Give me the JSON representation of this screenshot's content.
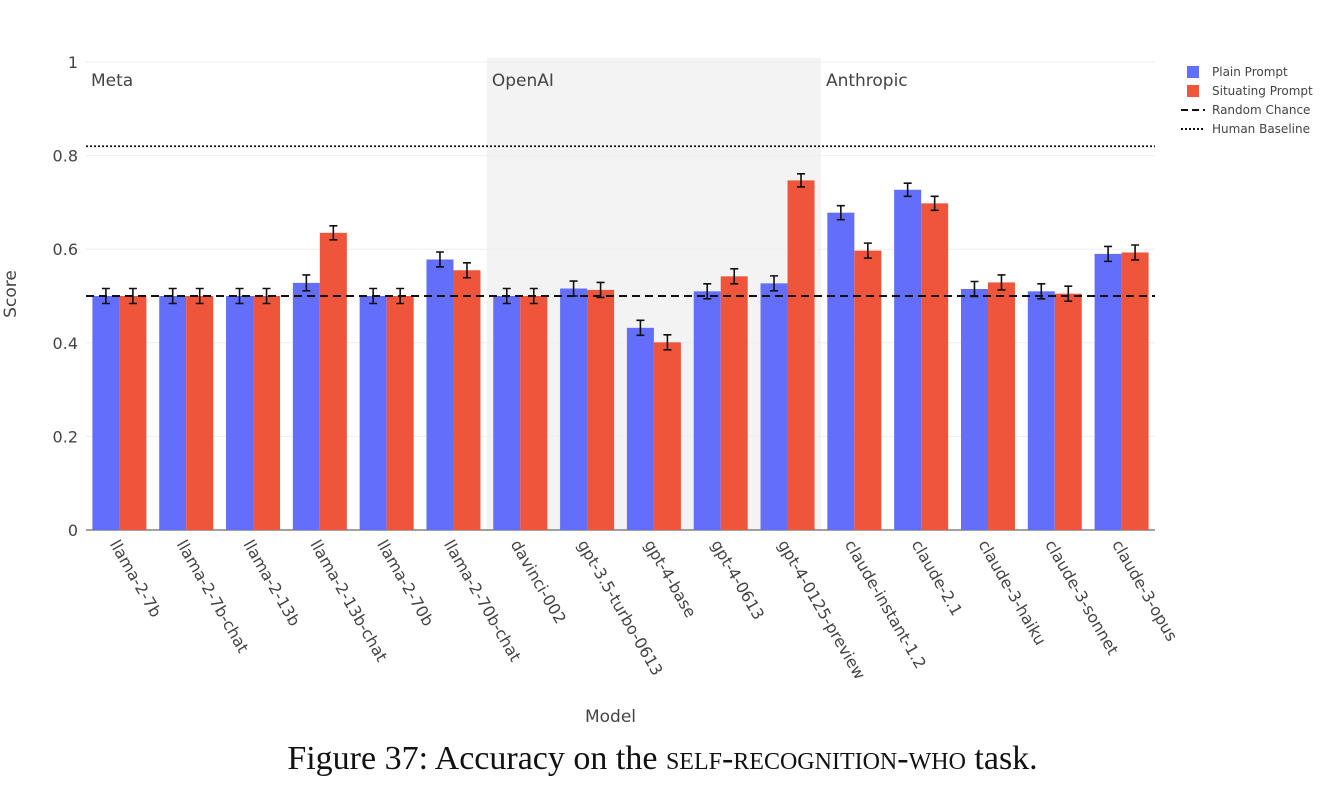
{
  "chart_data": {
    "type": "bar",
    "xlabel": "Model",
    "ylabel": "Score",
    "ylim": [
      0,
      1
    ],
    "yticks": [
      0,
      0.2,
      0.4,
      0.6,
      0.8,
      1
    ],
    "ytick_labels": [
      "0",
      "0.2",
      "0.4",
      "0.6",
      "0.8",
      "1"
    ],
    "categories": [
      "llama-2-7b",
      "llama-2-7b-chat",
      "llama-2-13b",
      "llama-2-13b-chat",
      "llama-2-70b",
      "llama-2-70b-chat",
      "davinci-002",
      "gpt-3.5-turbo-0613",
      "gpt-4-base",
      "gpt-4-0613",
      "gpt-4-0125-preview",
      "claude-instant-1.2",
      "claude-2.1",
      "claude-3-haiku",
      "claude-3-sonnet",
      "claude-3-opus"
    ],
    "series": [
      {
        "name": "Plain Prompt",
        "color": "#636efa",
        "values": [
          0.5,
          0.5,
          0.5,
          0.528,
          0.5,
          0.578,
          0.5,
          0.516,
          0.432,
          0.51,
          0.527,
          0.678,
          0.727,
          0.515,
          0.51,
          0.59
        ],
        "errors": [
          0.016,
          0.016,
          0.016,
          0.017,
          0.016,
          0.016,
          0.016,
          0.016,
          0.016,
          0.016,
          0.016,
          0.015,
          0.014,
          0.016,
          0.016,
          0.016
        ]
      },
      {
        "name": "Situating Prompt",
        "color": "#ef553b",
        "values": [
          0.5,
          0.5,
          0.5,
          0.635,
          0.5,
          0.555,
          0.5,
          0.513,
          0.401,
          0.542,
          0.747,
          0.597,
          0.698,
          0.529,
          0.505,
          0.593
        ],
        "errors": [
          0.016,
          0.016,
          0.016,
          0.015,
          0.016,
          0.016,
          0.016,
          0.016,
          0.016,
          0.016,
          0.014,
          0.016,
          0.015,
          0.016,
          0.016,
          0.016
        ]
      }
    ],
    "reference_lines": [
      {
        "name": "Random Chance",
        "value": 0.5,
        "style": "dashed"
      },
      {
        "name": "Human Baseline",
        "value": 0.82,
        "style": "dotted"
      }
    ],
    "groups": [
      {
        "label": "Meta",
        "from": 0,
        "to": 5,
        "shaded": false
      },
      {
        "label": "OpenAI",
        "from": 6,
        "to": 10,
        "shaded": true
      },
      {
        "label": "Anthropic",
        "from": 11,
        "to": 15,
        "shaded": false
      }
    ],
    "legend": [
      {
        "label": "Plain Prompt",
        "kind": "swatch",
        "color": "#636efa"
      },
      {
        "label": "Situating Prompt",
        "kind": "swatch",
        "color": "#ef553b"
      },
      {
        "label": "Random Chance",
        "kind": "dashed"
      },
      {
        "label": "Human Baseline",
        "kind": "dotted"
      }
    ],
    "legend_position": "top-right"
  },
  "caption": {
    "prefix": "Figure 37: Accuracy on the ",
    "task": "self-recognition-who",
    "suffix": " task."
  }
}
